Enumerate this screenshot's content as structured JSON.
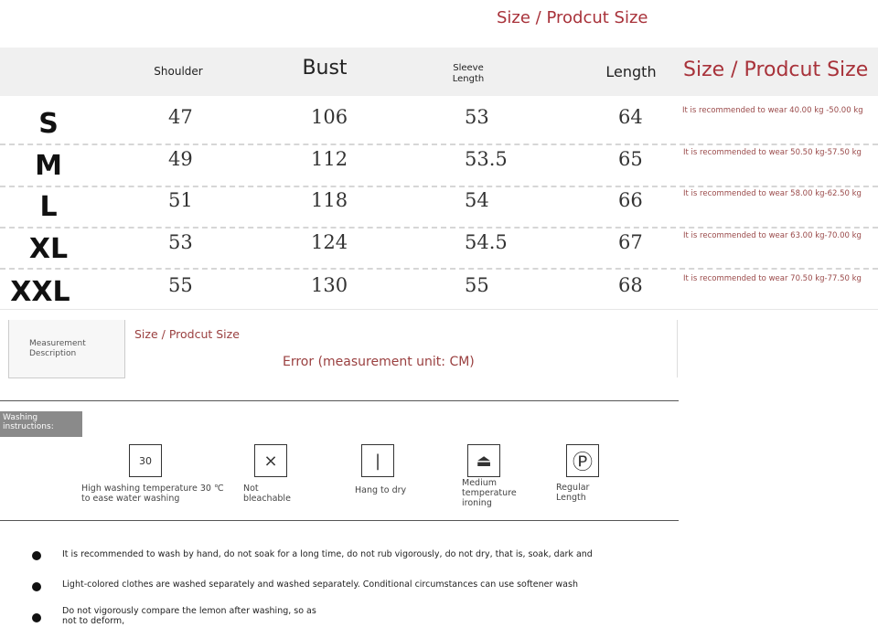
{
  "top_title": "Size / Prodcut Size",
  "header": {
    "shoulder": "Shoulder",
    "bust": "Bust",
    "sleeve": "Sleeve Length",
    "length": "Length",
    "title": "Size / Prodcut Size"
  },
  "rows": [
    {
      "size": "S",
      "shoulder": "47",
      "bust": "106",
      "sleeve": "53",
      "length": "64",
      "rec": "It is recommended to wear 40.00 kg -50.00 kg"
    },
    {
      "size": "M",
      "shoulder": "49",
      "bust": "112",
      "sleeve": "53.5",
      "length": "65",
      "rec": "It is recommended to wear 50.50 kg-57.50 kg"
    },
    {
      "size": "L",
      "shoulder": "51",
      "bust": "118",
      "sleeve": "54",
      "length": "66",
      "rec": "It is recommended to wear 58.00 kg-62.50 kg"
    },
    {
      "size": "XL",
      "shoulder": "53",
      "bust": "124",
      "sleeve": "54.5",
      "length": "67",
      "rec": "It is recommended to wear 63.00 kg-70.00 kg"
    },
    {
      "size": "XXL",
      "shoulder": "55",
      "bust": "130",
      "sleeve": "55",
      "length": "68",
      "rec": "It is recommended to wear 70.50 kg-77.50 kg"
    }
  ],
  "measurement": {
    "label": "Measurement Description",
    "title": "Size / Prodcut Size",
    "error": "Error (measurement unit: CM)"
  },
  "washing": {
    "label": "Washing instructions:",
    "items": [
      {
        "icon": "wash-30-icon",
        "glyph": "30",
        "label": "High washing temperature 30 ℃ to ease water washing"
      },
      {
        "icon": "no-bleach-icon",
        "glyph": "⨯",
        "label": "Not bleachable"
      },
      {
        "icon": "hang-dry-icon",
        "glyph": "|",
        "label": "Hang to dry"
      },
      {
        "icon": "iron-medium-icon",
        "glyph": "⏏",
        "label": "Medium temperature ironing"
      },
      {
        "icon": "dry-clean-p-icon",
        "glyph": "Ⓟ",
        "label": "Regular Length"
      }
    ]
  },
  "notes": [
    "It is recommended to wash by hand, do not soak for a long time, do not rub vigorously, do not dry, that is, soak, dark and",
    "Light-colored clothes are washed separately and washed separately. Conditional circumstances can use softener wash",
    "Do not vigorously compare the lemon after washing, so as not to deform,"
  ]
}
